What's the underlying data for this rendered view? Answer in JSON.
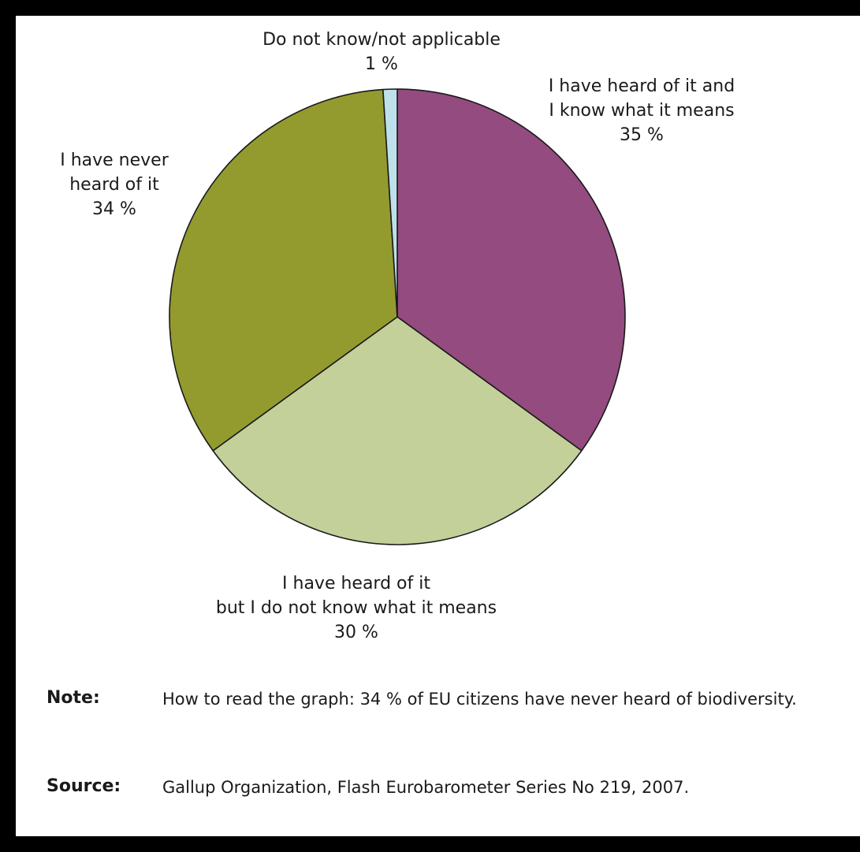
{
  "chart_data": {
    "type": "pie",
    "title": "",
    "slices": [
      {
        "label_lines": [
          "I have heard of it and",
          "I know what it means"
        ],
        "value": 35,
        "value_label": "35 %",
        "color": "#944b80"
      },
      {
        "label_lines": [
          "I have heard of it",
          "but I do not know what it means"
        ],
        "value": 30,
        "value_label": "30 %",
        "color": "#c3d09a"
      },
      {
        "label_lines": [
          "I have never",
          "heard of it"
        ],
        "value": 34,
        "value_label": "34 %",
        "color": "#939b2e"
      },
      {
        "label_lines": [
          "Do not know/not applicable"
        ],
        "value": 1,
        "value_label": "1 %",
        "color": "#bde0ea"
      }
    ],
    "start": "12 o'clock",
    "direction": "clockwise"
  },
  "footnotes": {
    "note_label": "Note:",
    "note_text": "How to read the graph: 34 % of EU citizens have never heard of biodiversity.",
    "source_label": "Source:",
    "source_text": "Gallup Organization, Flash Eurobarometer Series No 219, 2007."
  }
}
